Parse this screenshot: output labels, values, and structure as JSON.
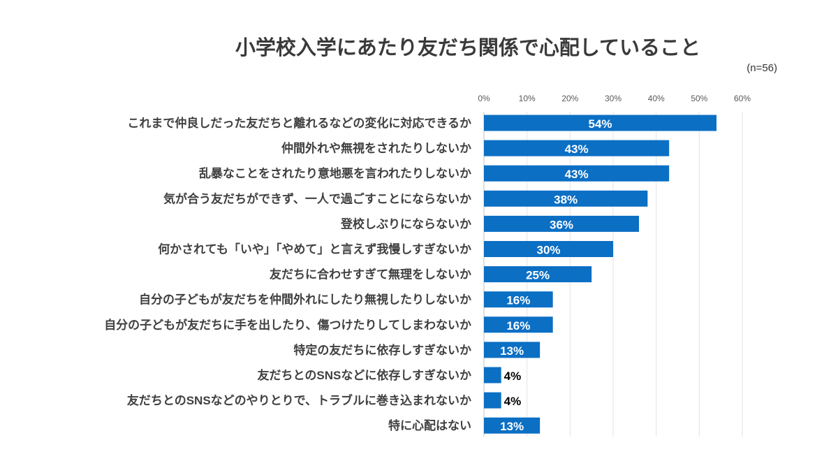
{
  "chart_data": {
    "type": "bar",
    "orientation": "horizontal",
    "title": "小学校入学にあたり友だち関係で心配していること",
    "note": "(n=56)",
    "xlabel": "",
    "ylabel": "",
    "xlim": [
      0,
      60
    ],
    "ticks": [
      "0%",
      "10%",
      "20%",
      "30%",
      "40%",
      "50%",
      "60%"
    ],
    "tick_values": [
      0,
      10,
      20,
      30,
      40,
      50,
      60
    ],
    "grid": true,
    "bar_color": "#0b6fc4",
    "categories": [
      "これまで仲良しだった友だちと離れるなどの変化に対応できるか",
      "仲間外れや無視をされたりしないか",
      "乱暴なことをされたり意地悪を言われたりしないか",
      "気が合う友だちができず、一人で過ごすことにならないか",
      "登校しぶりにならないか",
      "何かされても「いや」「やめて」と言えず我慢しすぎないか",
      "友だちに合わせすぎて無理をしないか",
      "自分の子どもが友だちを仲間外れにしたり無視したりしないか",
      "自分の子どもが友だちに手を出したり、傷つけたりしてしまわないか",
      "特定の友だちに依存しすぎないか",
      "友だちとのSNSなどに依存しすぎないか",
      "友だちとのSNSなどのやりとりで、トラブルに巻き込まれないか",
      "特に心配はない"
    ],
    "values": [
      54,
      43,
      43,
      38,
      36,
      30,
      25,
      16,
      16,
      13,
      4,
      4,
      13
    ],
    "value_labels": [
      "54%",
      "43%",
      "43%",
      "38%",
      "36%",
      "30%",
      "25%",
      "16%",
      "16%",
      "13%",
      "4%",
      "4%",
      "13%"
    ]
  }
}
